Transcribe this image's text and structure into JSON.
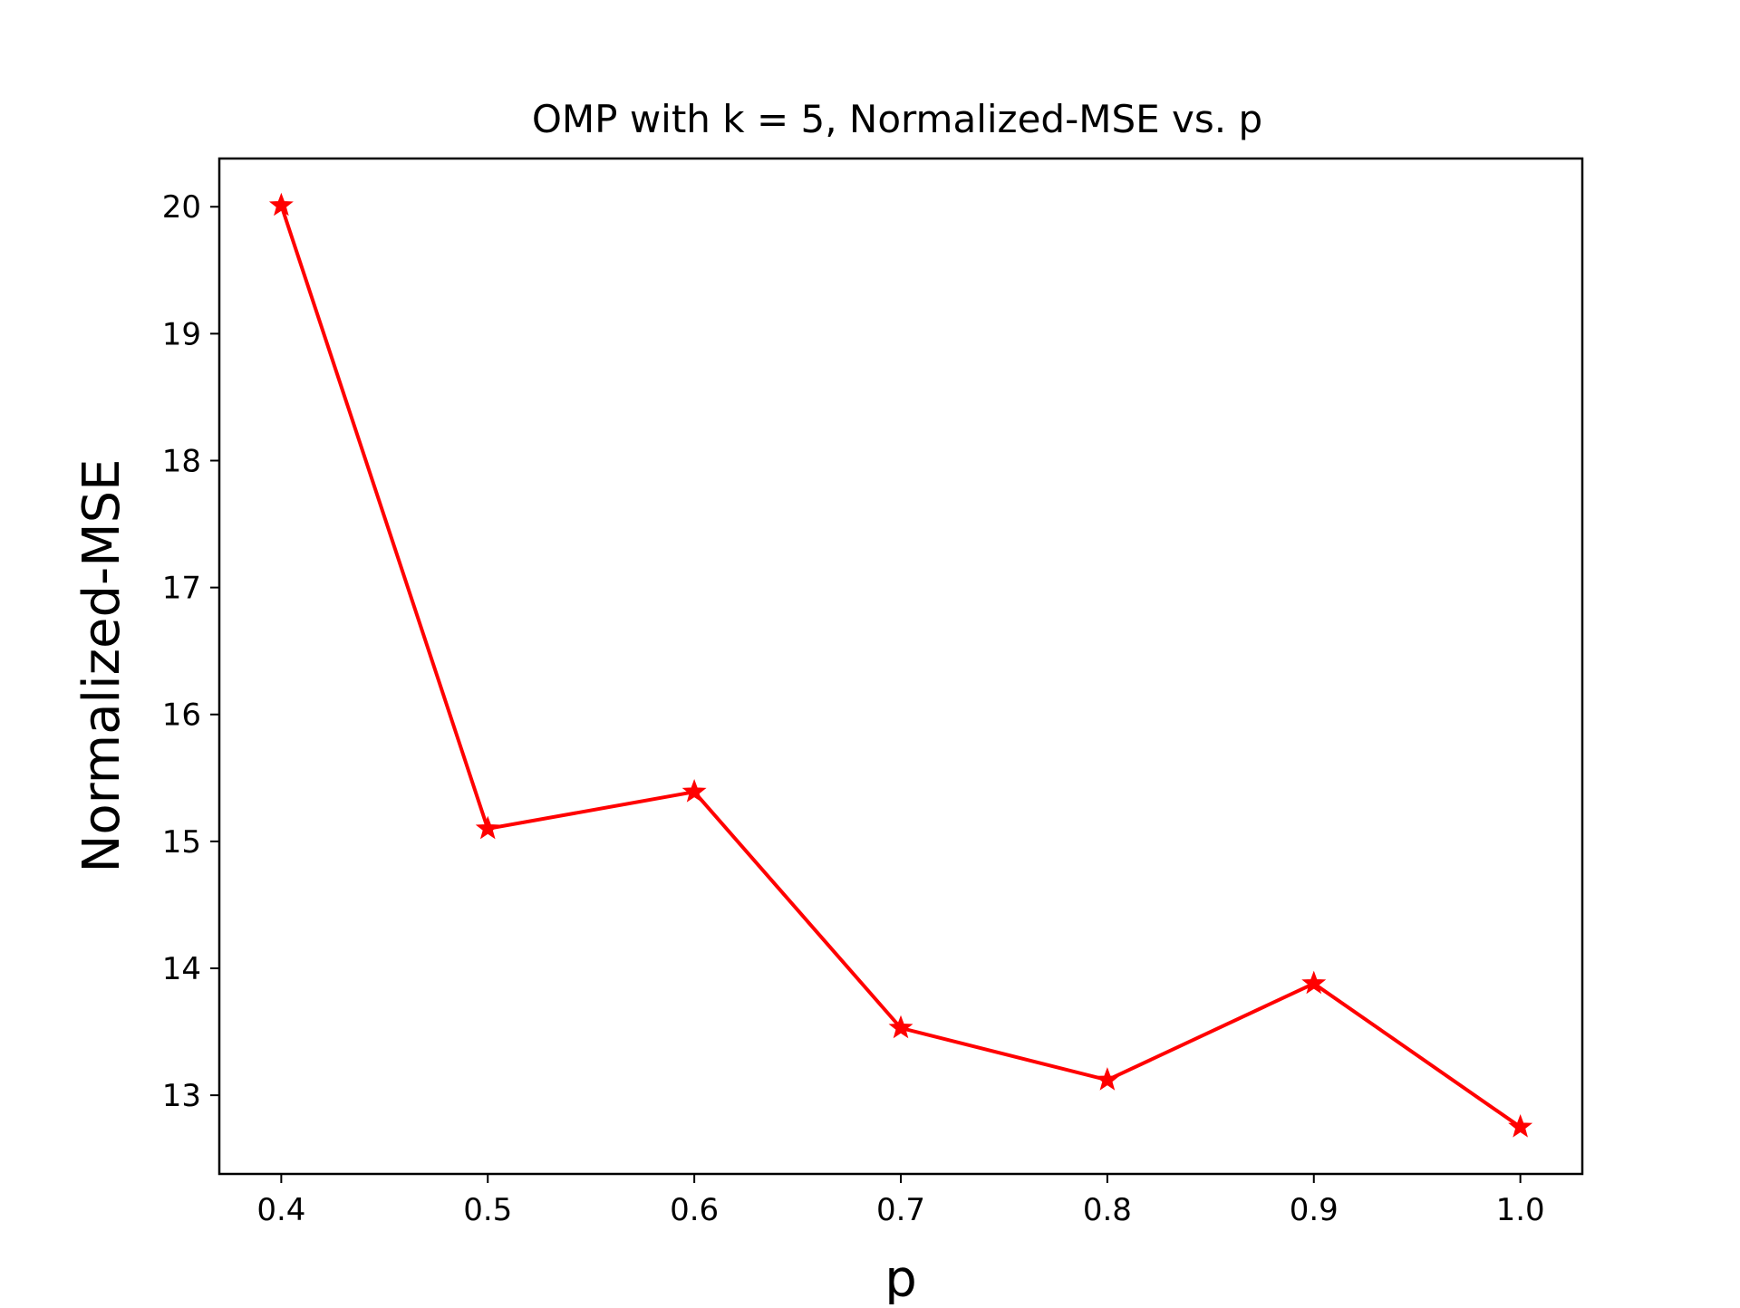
{
  "chart_data": {
    "type": "line",
    "title": "OMP with k = 5, Normalized-MSE vs. p",
    "xlabel": "p",
    "ylabel": "Normalized-MSE",
    "x": [
      0.4,
      0.5,
      0.6,
      0.7,
      0.8,
      0.9,
      1.0
    ],
    "series": [
      {
        "values": [
          20.01,
          15.1,
          15.39,
          13.53,
          13.12,
          13.88,
          12.75
        ],
        "color": "#ff0000",
        "marker": "star"
      }
    ],
    "xlim": [
      0.37,
      1.03
    ],
    "ylim": [
      12.38,
      20.38
    ],
    "xticks": [
      0.4,
      0.5,
      0.6,
      0.7,
      0.8,
      0.9,
      1.0
    ],
    "xtick_labels": [
      "0.4",
      "0.5",
      "0.6",
      "0.7",
      "0.8",
      "0.9",
      "1.0"
    ],
    "yticks": [
      13,
      14,
      15,
      16,
      17,
      18,
      19,
      20
    ],
    "ytick_labels": [
      "13",
      "14",
      "15",
      "16",
      "17",
      "18",
      "19",
      "20"
    ],
    "grid": false,
    "legend": "none"
  }
}
